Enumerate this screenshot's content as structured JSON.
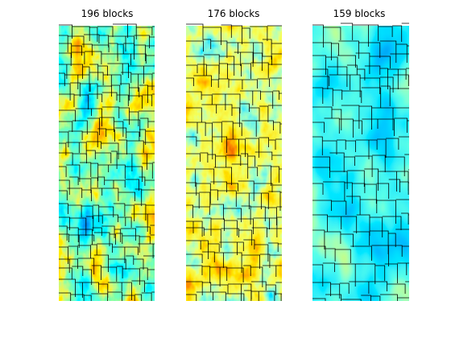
{
  "panels": [
    {
      "title": "196 blocks"
    },
    {
      "title": "176 blocks"
    },
    {
      "title": "159 blocks"
    }
  ]
}
